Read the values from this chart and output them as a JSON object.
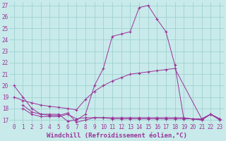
{
  "xlabel": "Windchill (Refroidissement éolien,°C)",
  "xlim": [
    -0.5,
    23.5
  ],
  "ylim": [
    16.7,
    27.3
  ],
  "yticks": [
    17,
    18,
    19,
    20,
    21,
    22,
    23,
    24,
    25,
    26,
    27
  ],
  "xticks": [
    0,
    1,
    2,
    3,
    4,
    5,
    6,
    7,
    8,
    9,
    10,
    11,
    12,
    13,
    14,
    15,
    16,
    17,
    18,
    19,
    20,
    21,
    22,
    23
  ],
  "bg_color": "#c8eaea",
  "line_color": "#993399",
  "lines": [
    {
      "x": [
        0,
        1,
        2,
        3,
        4,
        5,
        6,
        7,
        8,
        9,
        10,
        11,
        12,
        13,
        14,
        15,
        16,
        17,
        18,
        19,
        20,
        21,
        22,
        23
      ],
      "y": [
        20,
        19,
        18,
        17.5,
        17.5,
        17.5,
        16.9,
        17.0,
        17.5,
        20.0,
        21.5,
        24.3,
        24.5,
        24.7,
        26.8,
        27.0,
        25.8,
        24.7,
        21.8,
        17.1,
        17.1,
        17.0,
        17.5,
        17.0
      ]
    },
    {
      "x": [
        0,
        1,
        2,
        3,
        4,
        5,
        6,
        7,
        8,
        9,
        10,
        11,
        12,
        13,
        14,
        15,
        16,
        17,
        18,
        21,
        22,
        23
      ],
      "y": [
        19.0,
        18.7,
        18.5,
        18.3,
        18.2,
        18.1,
        18.0,
        17.9,
        18.8,
        19.5,
        20.0,
        20.4,
        20.7,
        21.0,
        21.1,
        21.2,
        21.3,
        21.4,
        21.5,
        17.1,
        17.5,
        17.1
      ]
    },
    {
      "x": [
        1,
        2,
        3,
        4,
        5,
        6,
        7,
        8,
        9,
        10,
        11,
        12,
        13,
        14,
        15,
        16,
        17,
        18,
        19,
        20,
        21,
        22,
        23
      ],
      "y": [
        18.0,
        17.5,
        17.3,
        17.3,
        17.3,
        17.5,
        17.1,
        17.2,
        17.2,
        17.2,
        17.1,
        17.1,
        17.1,
        17.1,
        17.1,
        17.1,
        17.1,
        17.1,
        17.1,
        17.1,
        17.0,
        17.5,
        17.1
      ]
    },
    {
      "x": [
        1,
        2,
        3,
        4,
        5,
        6,
        7,
        8,
        9,
        10,
        11,
        12,
        13,
        14,
        15,
        16,
        17,
        18,
        19,
        20,
        21,
        22,
        23
      ],
      "y": [
        18.3,
        17.7,
        17.5,
        17.4,
        17.4,
        17.6,
        16.8,
        17.0,
        17.2,
        17.2,
        17.2,
        17.2,
        17.2,
        17.2,
        17.2,
        17.2,
        17.2,
        17.2,
        17.2,
        17.1,
        17.1,
        17.5,
        17.1
      ]
    }
  ],
  "font_color": "#993399",
  "grid_color": "#99cccc",
  "tick_fontsize": 5.5,
  "label_fontsize": 6.5
}
